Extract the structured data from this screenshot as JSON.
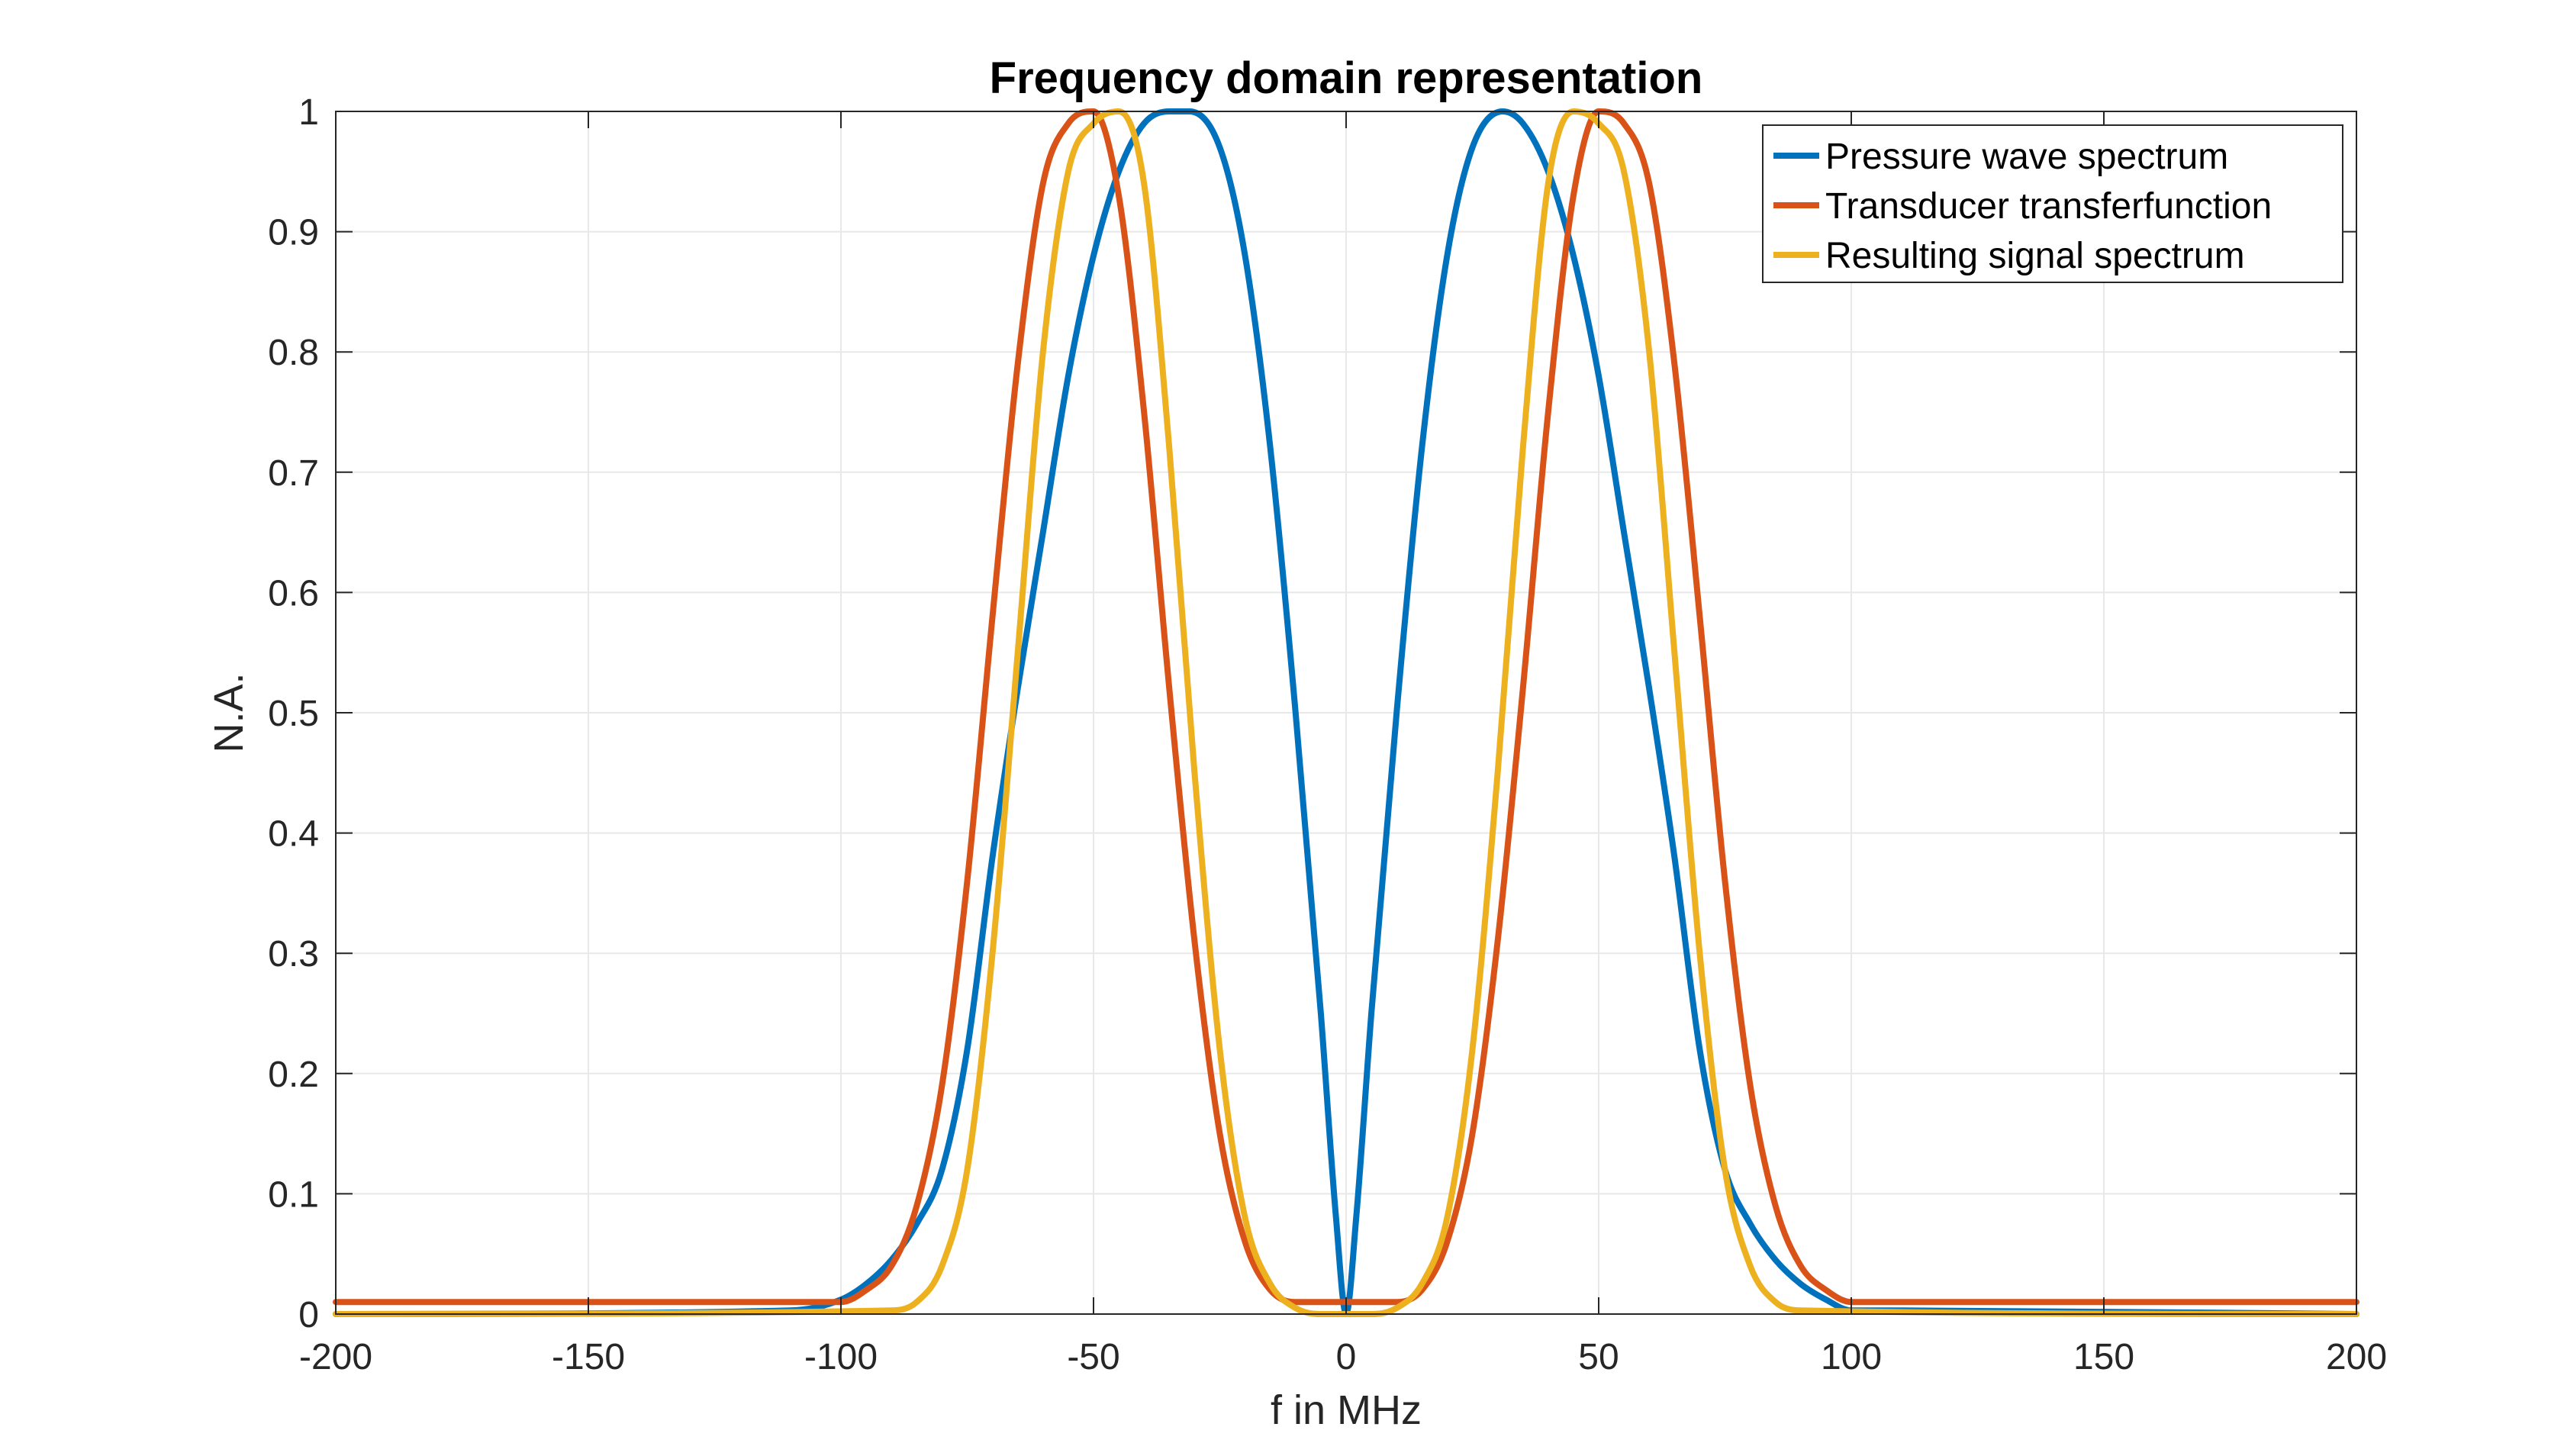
{
  "chart_data": {
    "type": "line",
    "title": "Frequency domain representation",
    "xlabel": "f in MHz",
    "ylabel": "N.A.",
    "xlim": [
      -200,
      200
    ],
    "ylim": [
      0,
      1
    ],
    "xticks": [
      -200,
      -150,
      -100,
      -50,
      0,
      50,
      100,
      150,
      200
    ],
    "yticks": [
      0,
      0.1,
      0.2,
      0.3,
      0.4,
      0.5,
      0.6,
      0.7,
      0.8,
      0.9,
      1
    ],
    "grid": true,
    "legend_position": "top-right",
    "series": [
      {
        "name": "Pressure wave spectrum",
        "color": "#0072BD",
        "x": [
          -200,
          -110,
          -100,
          -95,
          -90,
          -85,
          -80,
          -75,
          -70,
          -65,
          -60,
          -55,
          -50,
          -45,
          -40,
          -35,
          -31,
          -25,
          -20,
          -15,
          -10,
          -5,
          -2,
          0,
          2,
          5,
          10,
          15,
          20,
          25,
          31,
          35,
          40,
          45,
          50,
          55,
          60,
          65,
          70,
          75,
          80,
          85,
          90,
          95,
          100,
          110,
          200
        ],
        "y": [
          0,
          0.003,
          0.012,
          0.025,
          0.045,
          0.075,
          0.12,
          0.22,
          0.38,
          0.52,
          0.65,
          0.78,
          0.88,
          0.95,
          0.99,
          1.0,
          1.0,
          0.97,
          0.88,
          0.72,
          0.5,
          0.25,
          0.08,
          0.0,
          0.08,
          0.25,
          0.5,
          0.72,
          0.88,
          0.97,
          1.0,
          0.99,
          0.95,
          0.88,
          0.78,
          0.65,
          0.52,
          0.38,
          0.22,
          0.12,
          0.075,
          0.045,
          0.025,
          0.012,
          0.003,
          0.003,
          0
        ]
      },
      {
        "name": "Transducer transferfunction",
        "color": "#D95319",
        "x": [
          -200,
          -100,
          -95,
          -90,
          -85,
          -80,
          -75,
          -70,
          -65,
          -60,
          -55,
          -50,
          -45,
          -40,
          -35,
          -30,
          -25,
          -20,
          -15,
          -10,
          -5,
          0,
          5,
          10,
          15,
          20,
          25,
          30,
          35,
          40,
          45,
          50,
          55,
          60,
          65,
          70,
          75,
          80,
          85,
          90,
          95,
          100,
          200
        ],
        "y": [
          0.01,
          0.01,
          0.02,
          0.04,
          0.09,
          0.19,
          0.36,
          0.58,
          0.79,
          0.94,
          0.99,
          1.0,
          0.93,
          0.75,
          0.52,
          0.31,
          0.15,
          0.06,
          0.02,
          0.01,
          0.01,
          0.01,
          0.01,
          0.01,
          0.02,
          0.06,
          0.15,
          0.31,
          0.52,
          0.75,
          0.93,
          1.0,
          0.99,
          0.94,
          0.79,
          0.58,
          0.36,
          0.19,
          0.09,
          0.04,
          0.02,
          0.01,
          0.01
        ]
      },
      {
        "name": "Resulting signal spectrum",
        "color": "#EDB120",
        "x": [
          -200,
          -90,
          -85,
          -80,
          -75,
          -70,
          -65,
          -60,
          -55,
          -50,
          -45,
          -40,
          -35,
          -30,
          -25,
          -20,
          -15,
          -10,
          -5,
          0,
          5,
          10,
          15,
          20,
          25,
          30,
          35,
          40,
          45,
          50,
          55,
          60,
          65,
          70,
          75,
          80,
          85,
          90,
          200
        ],
        "y": [
          0,
          0.003,
          0.01,
          0.04,
          0.12,
          0.3,
          0.55,
          0.8,
          0.95,
          0.99,
          1.0,
          0.94,
          0.72,
          0.45,
          0.22,
          0.08,
          0.025,
          0.005,
          0.0,
          0.0,
          0.0,
          0.005,
          0.025,
          0.08,
          0.22,
          0.45,
          0.72,
          0.94,
          1.0,
          0.99,
          0.95,
          0.8,
          0.55,
          0.3,
          0.12,
          0.04,
          0.01,
          0.003,
          0
        ]
      }
    ]
  }
}
